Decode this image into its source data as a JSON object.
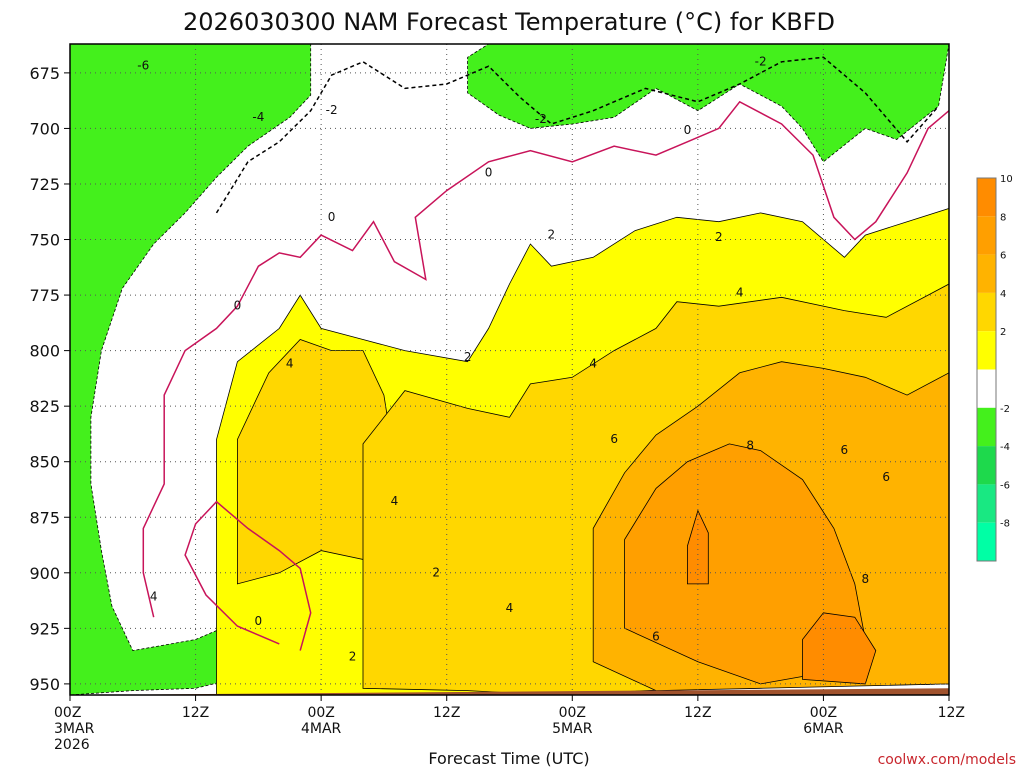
{
  "chart_data": {
    "type": "heatmap",
    "title": "2026030300 NAM Forecast Temperature (°C) for KBFD",
    "xlabel": "Forecast Time (UTC)",
    "ylabel": "",
    "credit": "coolwx.com/models",
    "x_unit": "forecast hour",
    "xlim": [
      0,
      84
    ],
    "y_unit": "hPa",
    "ylim": [
      955,
      662
    ],
    "y_ticks": [
      675,
      700,
      725,
      750,
      775,
      800,
      825,
      850,
      875,
      900,
      925,
      950
    ],
    "x_ticks": [
      {
        "hour": 0,
        "lines": [
          "00Z",
          "3MAR",
          "2026"
        ]
      },
      {
        "hour": 12,
        "lines": [
          "12Z"
        ]
      },
      {
        "hour": 24,
        "lines": [
          "00Z",
          "4MAR"
        ]
      },
      {
        "hour": 36,
        "lines": [
          "12Z"
        ]
      },
      {
        "hour": 48,
        "lines": [
          "00Z",
          "5MAR"
        ]
      },
      {
        "hour": 60,
        "lines": [
          "12Z"
        ]
      },
      {
        "hour": 72,
        "lines": [
          "00Z",
          "6MAR"
        ]
      },
      {
        "hour": 84,
        "lines": [
          "12Z"
        ]
      }
    ],
    "colorbar": {
      "ticks": [
        "10",
        "8",
        "6",
        "4",
        "2",
        "-2",
        "-4",
        "-6",
        "-8"
      ],
      "bands": [
        {
          "range": [
            10,
            12
          ],
          "color": "#ff8c00"
        },
        {
          "range": [
            8,
            10
          ],
          "color": "#ff9f00"
        },
        {
          "range": [
            6,
            8
          ],
          "color": "#ffb300"
        },
        {
          "range": [
            4,
            6
          ],
          "color": "#ffd700"
        },
        {
          "range": [
            2,
            4
          ],
          "color": "#ffff00"
        },
        {
          "range": [
            -2,
            2
          ],
          "color": "#ffffff"
        },
        {
          "range": [
            -4,
            -2
          ],
          "color": "#44f01c"
        },
        {
          "range": [
            -6,
            -4
          ],
          "color": "#1ed94c"
        },
        {
          "range": [
            -8,
            -6
          ],
          "color": "#19e882"
        },
        {
          "range": [
            -10,
            -8
          ],
          "color": "#00ffa5"
        }
      ]
    },
    "terrain": {
      "color": "#a0522d",
      "surface_pressure_hpa": [
        955,
        952
      ]
    },
    "regions": [
      {
        "label": "-8",
        "color": "#00ffa5",
        "points": [
          [
            0,
            662
          ],
          [
            0,
            705
          ],
          [
            3,
            698
          ],
          [
            6,
            692
          ],
          [
            9,
            684
          ],
          [
            13,
            674
          ],
          [
            16,
            662
          ]
        ]
      },
      {
        "label": "-6 to -4",
        "color": "#1ed94c",
        "points": [
          [
            0,
            662
          ],
          [
            16,
            662
          ],
          [
            13,
            674
          ],
          [
            9,
            684
          ],
          [
            6,
            692
          ],
          [
            3,
            698
          ],
          [
            0,
            705
          ]
        ]
      },
      {
        "label": "-4 to -2 (left)",
        "color": "#44f01c",
        "points": [
          [
            0,
            662
          ],
          [
            23,
            662
          ],
          [
            23,
            685
          ],
          [
            21,
            695
          ],
          [
            17,
            708
          ],
          [
            14,
            722
          ],
          [
            11,
            738
          ],
          [
            8,
            752
          ],
          [
            5,
            772
          ],
          [
            3,
            800
          ],
          [
            2,
            830
          ],
          [
            2,
            860
          ],
          [
            3,
            890
          ],
          [
            4,
            915
          ],
          [
            6,
            935
          ],
          [
            12,
            930
          ],
          [
            17,
            920
          ],
          [
            18,
            945
          ],
          [
            12,
            952
          ],
          [
            6,
            953
          ],
          [
            0,
            955
          ]
        ]
      },
      {
        "label": "-4 to -2 (top)",
        "color": "#44f01c",
        "points": [
          [
            40,
            662
          ],
          [
            84,
            662
          ],
          [
            83,
            690
          ],
          [
            79,
            705
          ],
          [
            76,
            700
          ],
          [
            72,
            715
          ],
          [
            70,
            700
          ],
          [
            68,
            690
          ],
          [
            64,
            680
          ],
          [
            60,
            692
          ],
          [
            56,
            682
          ],
          [
            52,
            695
          ],
          [
            48,
            698
          ],
          [
            44,
            700
          ],
          [
            41,
            694
          ],
          [
            38,
            684
          ],
          [
            38,
            668
          ]
        ]
      },
      {
        "label": "2 to 4",
        "color": "#ffff00",
        "points": [
          [
            14,
            955
          ],
          [
            14,
            840
          ],
          [
            16,
            805
          ],
          [
            20,
            790
          ],
          [
            22,
            775
          ],
          [
            24,
            790
          ],
          [
            28,
            795
          ],
          [
            32,
            800
          ],
          [
            38,
            805
          ],
          [
            40,
            790
          ],
          [
            42,
            770
          ],
          [
            44,
            752
          ],
          [
            46,
            762
          ],
          [
            50,
            758
          ],
          [
            54,
            746
          ],
          [
            58,
            740
          ],
          [
            62,
            742
          ],
          [
            66,
            738
          ],
          [
            70,
            742
          ],
          [
            74,
            758
          ],
          [
            76,
            748
          ],
          [
            80,
            742
          ],
          [
            84,
            736
          ],
          [
            84,
            950
          ],
          [
            60,
            952
          ],
          [
            46,
            955
          ]
        ]
      },
      {
        "label": "4 to 6 (left)",
        "color": "#ffd700",
        "points": [
          [
            16,
            905
          ],
          [
            16,
            840
          ],
          [
            19,
            810
          ],
          [
            22,
            795
          ],
          [
            25,
            800
          ],
          [
            28,
            800
          ],
          [
            30,
            820
          ],
          [
            31,
            850
          ],
          [
            31,
            880
          ],
          [
            29,
            895
          ],
          [
            24,
            890
          ],
          [
            20,
            900
          ]
        ]
      },
      {
        "label": "4 to 6 (right)",
        "color": "#ffd700",
        "points": [
          [
            28,
            952
          ],
          [
            28,
            842
          ],
          [
            32,
            818
          ],
          [
            38,
            826
          ],
          [
            42,
            830
          ],
          [
            44,
            815
          ],
          [
            48,
            812
          ],
          [
            52,
            800
          ],
          [
            56,
            790
          ],
          [
            58,
            778
          ],
          [
            62,
            780
          ],
          [
            68,
            776
          ],
          [
            74,
            782
          ],
          [
            78,
            785
          ],
          [
            82,
            775
          ],
          [
            84,
            770
          ],
          [
            84,
            950
          ],
          [
            60,
            952
          ],
          [
            46,
            955
          ],
          [
            38,
            953
          ]
        ]
      },
      {
        "label": "6 to 8",
        "color": "#ffb300",
        "points": [
          [
            50,
            940
          ],
          [
            50,
            880
          ],
          [
            53,
            855
          ],
          [
            56,
            838
          ],
          [
            60,
            825
          ],
          [
            64,
            810
          ],
          [
            68,
            805
          ],
          [
            72,
            808
          ],
          [
            76,
            812
          ],
          [
            80,
            820
          ],
          [
            84,
            810
          ],
          [
            84,
            950
          ],
          [
            66,
            952
          ],
          [
            56,
            953
          ]
        ]
      },
      {
        "label": "8 to 10",
        "color": "#ff9f00",
        "points": [
          [
            53,
            925
          ],
          [
            53,
            885
          ],
          [
            56,
            862
          ],
          [
            59,
            850
          ],
          [
            63,
            842
          ],
          [
            66,
            845
          ],
          [
            70,
            858
          ],
          [
            73,
            880
          ],
          [
            75,
            905
          ],
          [
            76,
            930
          ],
          [
            72,
            945
          ],
          [
            66,
            950
          ],
          [
            60,
            940
          ]
        ]
      },
      {
        "label": "10 to 12",
        "color": "#ff8c00",
        "points": [
          [
            59,
            905
          ],
          [
            59,
            888
          ],
          [
            60,
            872
          ],
          [
            61,
            882
          ],
          [
            61,
            905
          ]
        ]
      },
      {
        "label": "10 to 12 (low)",
        "color": "#ff8c00",
        "points": [
          [
            70,
            948
          ],
          [
            70,
            930
          ],
          [
            72,
            918
          ],
          [
            75,
            920
          ],
          [
            77,
            935
          ],
          [
            76,
            950
          ]
        ]
      }
    ],
    "contours": [
      {
        "label": "0",
        "color": "#c8145a",
        "points": [
          [
            8,
            920
          ],
          [
            7,
            900
          ],
          [
            7,
            880
          ],
          [
            9,
            860
          ],
          [
            9,
            820
          ],
          [
            11,
            800
          ],
          [
            14,
            790
          ],
          [
            16,
            780
          ],
          [
            18,
            762
          ],
          [
            20,
            756
          ],
          [
            22,
            758
          ],
          [
            24,
            748
          ],
          [
            27,
            755
          ],
          [
            29,
            742
          ],
          [
            31,
            760
          ],
          [
            34,
            768
          ],
          [
            33,
            740
          ],
          [
            36,
            728
          ],
          [
            40,
            715
          ],
          [
            44,
            710
          ],
          [
            48,
            715
          ],
          [
            52,
            708
          ],
          [
            56,
            712
          ],
          [
            59,
            706
          ],
          [
            62,
            700
          ],
          [
            64,
            688
          ],
          [
            68,
            698
          ],
          [
            71,
            712
          ],
          [
            73,
            740
          ],
          [
            75,
            750
          ],
          [
            77,
            742
          ],
          [
            80,
            720
          ],
          [
            82,
            700
          ],
          [
            84,
            692
          ]
        ]
      },
      {
        "label": "0",
        "color": "#c8145a",
        "points": [
          [
            20,
            932
          ],
          [
            16,
            924
          ],
          [
            13,
            910
          ],
          [
            11,
            892
          ],
          [
            12,
            878
          ],
          [
            14,
            868
          ],
          [
            17,
            880
          ],
          [
            20,
            890
          ],
          [
            22,
            898
          ],
          [
            23,
            918
          ],
          [
            22,
            935
          ]
        ]
      },
      {
        "label": "-2",
        "color": "#000000",
        "dash": true,
        "points": [
          [
            14,
            738
          ],
          [
            17,
            715
          ],
          [
            20,
            706
          ],
          [
            23,
            692
          ],
          [
            25,
            676
          ],
          [
            28,
            670
          ],
          [
            32,
            682
          ],
          [
            36,
            680
          ],
          [
            40,
            672
          ],
          [
            43,
            686
          ],
          [
            46,
            698
          ],
          [
            50,
            692
          ],
          [
            55,
            682
          ],
          [
            60,
            688
          ],
          [
            64,
            680
          ],
          [
            68,
            670
          ],
          [
            72,
            668
          ],
          [
            76,
            684
          ],
          [
            80,
            706
          ],
          [
            83,
            690
          ]
        ]
      }
    ],
    "contour_labels": [
      {
        "text": "-6",
        "x": 7,
        "y": 672
      },
      {
        "text": "-4",
        "x": 18,
        "y": 695
      },
      {
        "text": "-2",
        "x": 25,
        "y": 692
      },
      {
        "text": "-2",
        "x": 45,
        "y": 696
      },
      {
        "text": "-2",
        "x": 66,
        "y": 670
      },
      {
        "text": "0",
        "x": 59,
        "y": 701
      },
      {
        "text": "0",
        "x": 40,
        "y": 720
      },
      {
        "text": "0",
        "x": 25,
        "y": 740
      },
      {
        "text": "0",
        "x": 16,
        "y": 780
      },
      {
        "text": "0",
        "x": 18,
        "y": 922
      },
      {
        "text": "2",
        "x": 46,
        "y": 748
      },
      {
        "text": "2",
        "x": 62,
        "y": 749
      },
      {
        "text": "2",
        "x": 38,
        "y": 803
      },
      {
        "text": "2",
        "x": 35,
        "y": 900
      },
      {
        "text": "2",
        "x": 27,
        "y": 938
      },
      {
        "text": "4",
        "x": 21,
        "y": 806
      },
      {
        "text": "4",
        "x": 31,
        "y": 868
      },
      {
        "text": "4",
        "x": 50,
        "y": 806
      },
      {
        "text": "4",
        "x": 64,
        "y": 774
      },
      {
        "text": "4",
        "x": 42,
        "y": 916
      },
      {
        "text": "4",
        "x": 8,
        "y": 911
      },
      {
        "text": "6",
        "x": 52,
        "y": 840
      },
      {
        "text": "6",
        "x": 56,
        "y": 929
      },
      {
        "text": "6",
        "x": 74,
        "y": 845
      },
      {
        "text": "6",
        "x": 78,
        "y": 857
      },
      {
        "text": "8",
        "x": 65,
        "y": 843
      },
      {
        "text": "8",
        "x": 76,
        "y": 903
      }
    ]
  }
}
